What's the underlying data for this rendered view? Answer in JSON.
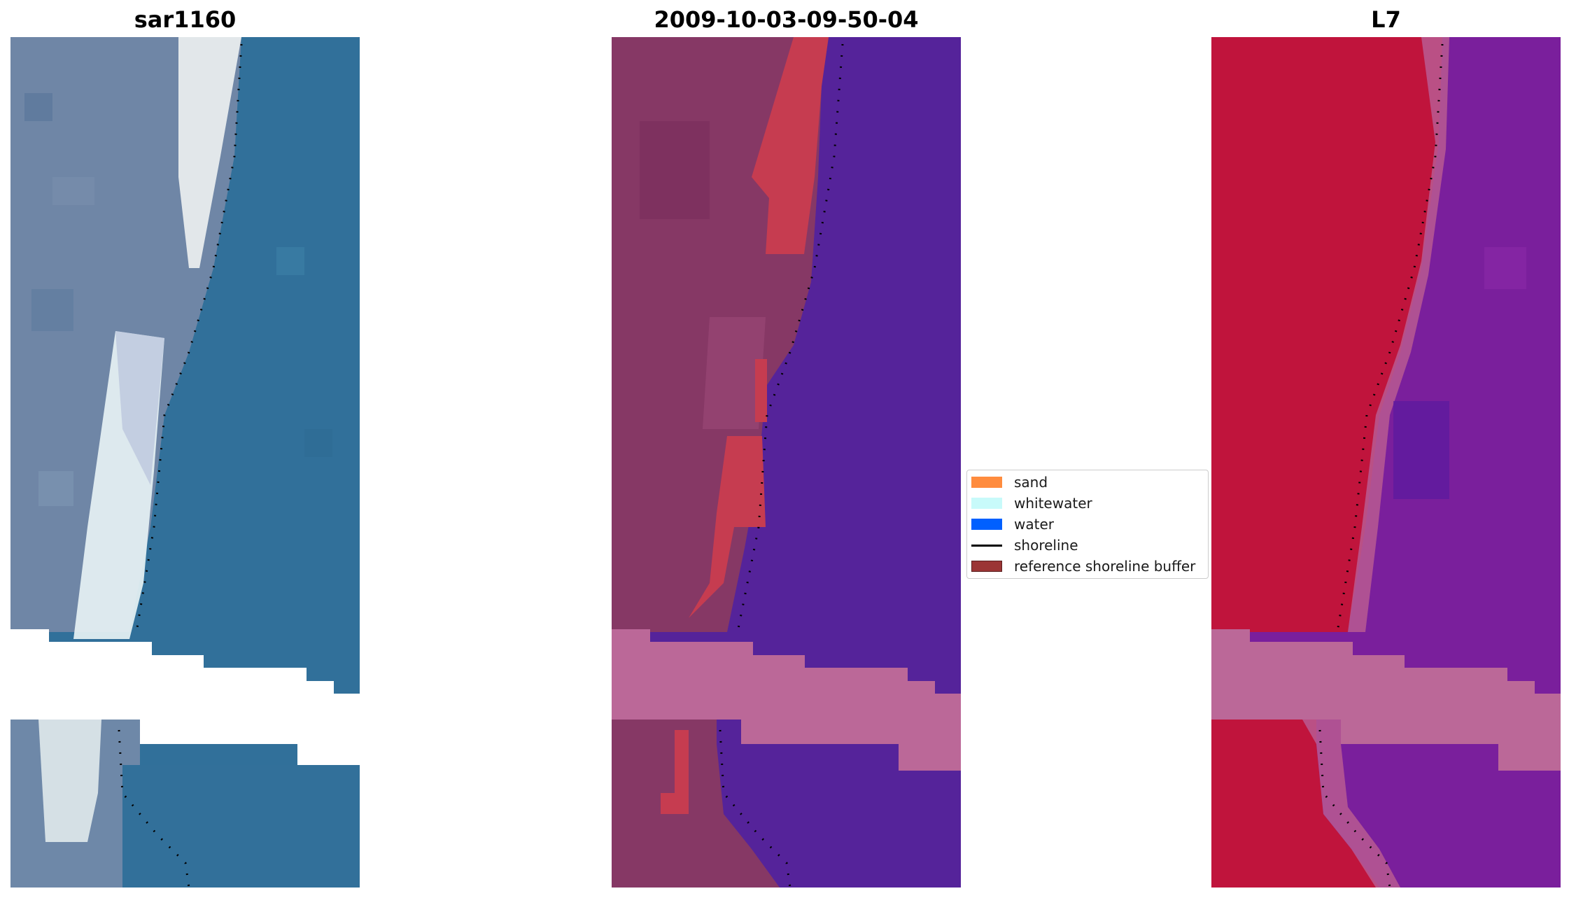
{
  "panels": [
    {
      "id": "rgb",
      "title": "sar1160",
      "image": "satellite RGB image with shoreline"
    },
    {
      "id": "classified",
      "title": "2009-10-03-09-50-04",
      "image": "classified image with shoreline buffer"
    },
    {
      "id": "index",
      "title": "L7",
      "image": "water index image with shoreline"
    }
  ],
  "legend": {
    "items": [
      {
        "label": "sand",
        "kind": "patch",
        "color": "#ff8c3e"
      },
      {
        "label": "whitewater",
        "kind": "patch",
        "color": "#c8fafa"
      },
      {
        "label": "water",
        "kind": "patch",
        "color": "#0060ff"
      },
      {
        "label": "shoreline",
        "kind": "line",
        "color": "#000000"
      },
      {
        "label": "reference shoreline buffer",
        "kind": "patch",
        "color": "#9b3535"
      }
    ]
  }
}
